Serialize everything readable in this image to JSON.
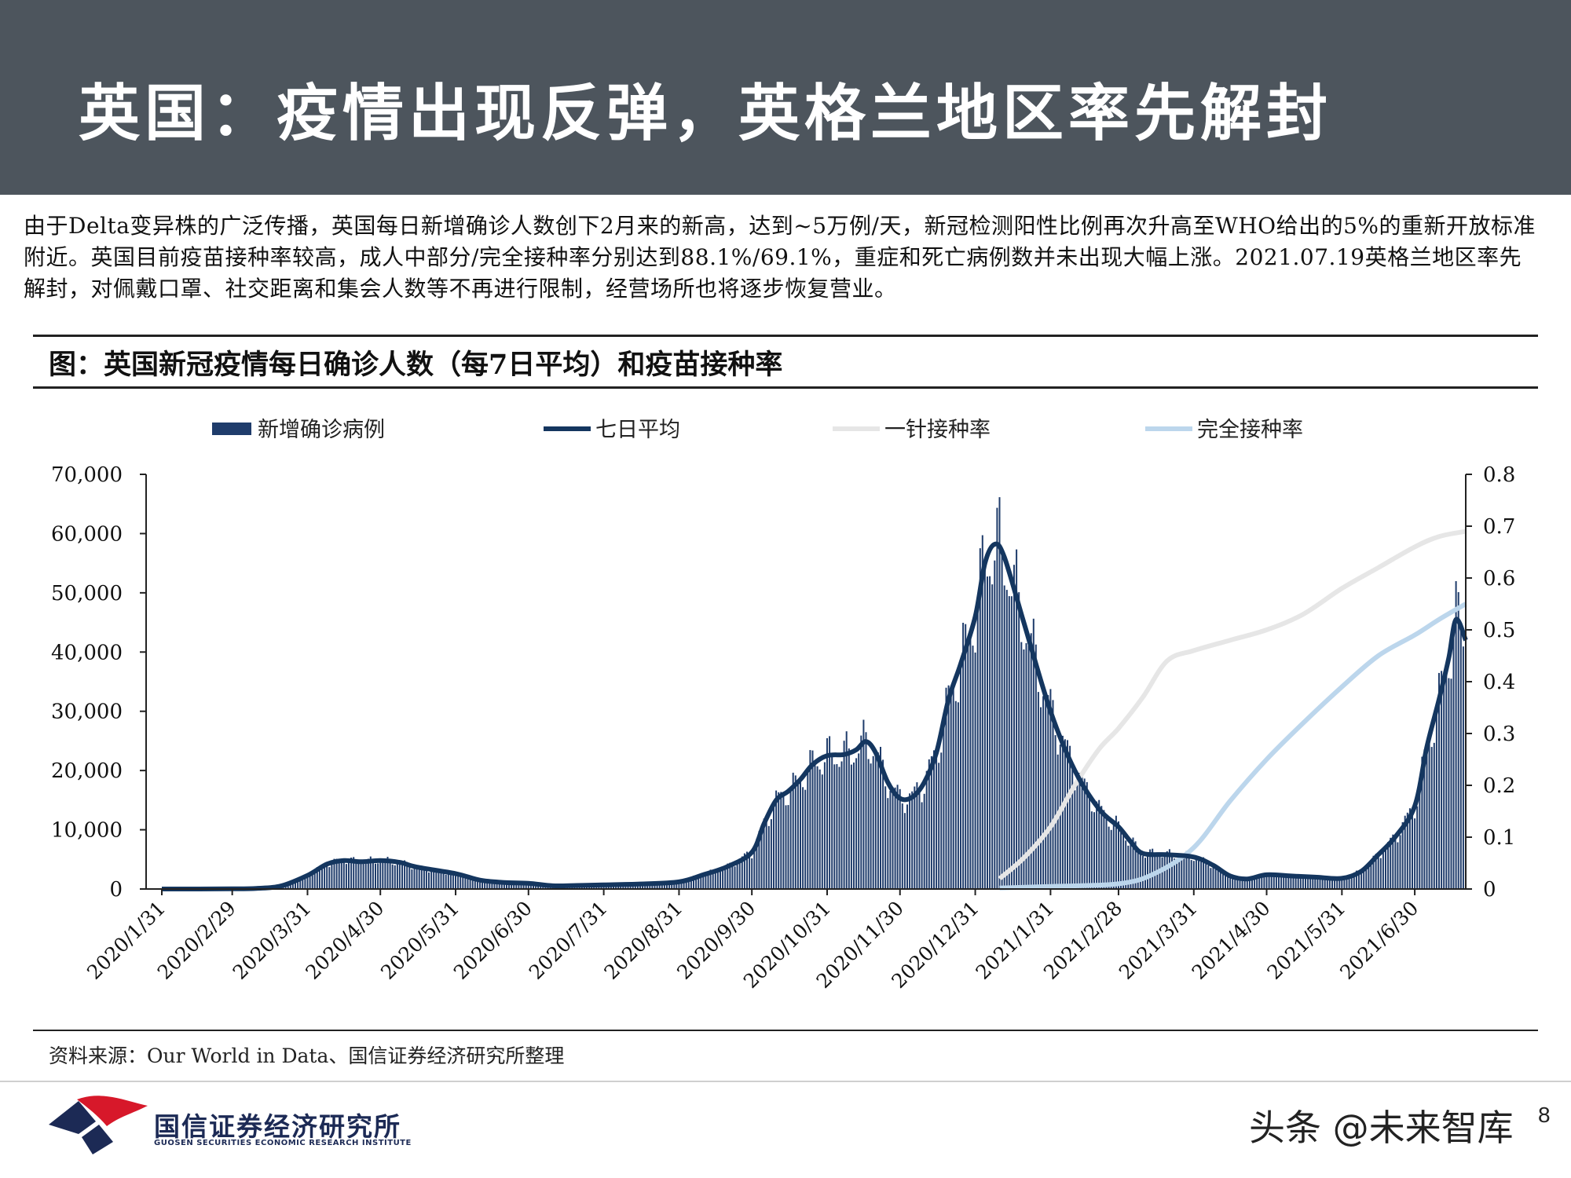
{
  "header": {
    "title": "英国：疫情出现反弹，英格兰地区率先解封"
  },
  "intro": {
    "text": "由于Delta变异株的广泛传播，英国每日新增确诊人数创下2月来的新高，达到~5万例/天，新冠检测阳性比例再次升高至WHO给出的5%的重新开放标准附近。英国目前疫苗接种率较高，成人中部分/完全接种率分别达到88.1%/69.1%，重症和死亡病例数并未出现大幅上涨。2021.07.19英格兰地区率先解封，对佩戴口罩、社交距离和集会人数等不再进行限制，经营场所也将逐步恢复营业。"
  },
  "figure": {
    "title": "图：英国新冠疫情每日确诊人数（每7日平均）和疫苗接种率"
  },
  "colors": {
    "header_bg": "#4d555d",
    "bars": "#1f3c6b",
    "avg_line": "#14365f",
    "first_dose": "#e6e6e6",
    "full_dose": "#bcd6ec"
  },
  "chart_data": {
    "type": "bar",
    "legend": [
      "新增确诊病例",
      "七日平均",
      "一针接种率",
      "完全接种率"
    ],
    "legend_placement": "top",
    "y_left": {
      "ticks": [
        "0",
        "10,000",
        "20,000",
        "30,000",
        "40,000",
        "50,000",
        "60,000",
        "70,000"
      ],
      "range": [
        0,
        70000
      ]
    },
    "y_right": {
      "ticks": [
        "0",
        "0.1",
        "0.2",
        "0.3",
        "0.4",
        "0.5",
        "0.6",
        "0.7",
        "0.8"
      ],
      "range": [
        0,
        0.8
      ]
    },
    "x_ticks": [
      "2020/1/31",
      "2020/2/29",
      "2020/3/31",
      "2020/4/30",
      "2020/5/31",
      "2020/6/30",
      "2020/7/31",
      "2020/8/31",
      "2020/9/30",
      "2020/10/31",
      "2020/11/30",
      "2020/12/31",
      "2021/1/31",
      "2021/2/28",
      "2021/3/31",
      "2021/4/30",
      "2021/5/31",
      "2021/6/30"
    ],
    "x_range": [
      "2020-01-31",
      "2021-07-21"
    ],
    "grid": false,
    "series": [
      {
        "name": "七日平均",
        "axis": "left",
        "points": [
          [
            "2020-01-31",
            0
          ],
          [
            "2020-02-29",
            20
          ],
          [
            "2020-03-10",
            100
          ],
          [
            "2020-03-20",
            500
          ],
          [
            "2020-03-31",
            2300
          ],
          [
            "2020-04-08",
            4200
          ],
          [
            "2020-04-15",
            4800
          ],
          [
            "2020-04-22",
            4600
          ],
          [
            "2020-04-30",
            4800
          ],
          [
            "2020-05-08",
            4500
          ],
          [
            "2020-05-15",
            3700
          ],
          [
            "2020-05-31",
            2600
          ],
          [
            "2020-06-10",
            1500
          ],
          [
            "2020-06-20",
            1100
          ],
          [
            "2020-06-30",
            950
          ],
          [
            "2020-07-10",
            550
          ],
          [
            "2020-07-20",
            600
          ],
          [
            "2020-07-31",
            700
          ],
          [
            "2020-08-15",
            850
          ],
          [
            "2020-08-31",
            1200
          ],
          [
            "2020-09-10",
            2400
          ],
          [
            "2020-09-20",
            3800
          ],
          [
            "2020-09-30",
            6200
          ],
          [
            "2020-10-05",
            11000
          ],
          [
            "2020-10-10",
            15000
          ],
          [
            "2020-10-15",
            16500
          ],
          [
            "2020-10-20",
            18500
          ],
          [
            "2020-10-25",
            21000
          ],
          [
            "2020-10-31",
            22500
          ],
          [
            "2020-11-07",
            22700
          ],
          [
            "2020-11-12",
            23500
          ],
          [
            "2020-11-16",
            24900
          ],
          [
            "2020-11-20",
            23000
          ],
          [
            "2020-11-25",
            18000
          ],
          [
            "2020-11-30",
            15300
          ],
          [
            "2020-12-05",
            15500
          ],
          [
            "2020-12-10",
            18000
          ],
          [
            "2020-12-15",
            23000
          ],
          [
            "2020-12-20",
            32000
          ],
          [
            "2020-12-25",
            38000
          ],
          [
            "2020-12-31",
            46000
          ],
          [
            "2021-01-04",
            55000
          ],
          [
            "2021-01-08",
            58200
          ],
          [
            "2021-01-12",
            56000
          ],
          [
            "2021-01-20",
            45000
          ],
          [
            "2021-01-31",
            30000
          ],
          [
            "2021-02-10",
            20000
          ],
          [
            "2021-02-20",
            13500
          ],
          [
            "2021-02-28",
            10500
          ],
          [
            "2021-03-05",
            8000
          ],
          [
            "2021-03-10",
            6000
          ],
          [
            "2021-03-20",
            5800
          ],
          [
            "2021-03-31",
            5400
          ],
          [
            "2021-04-08",
            4000
          ],
          [
            "2021-04-15",
            2200
          ],
          [
            "2021-04-22",
            1700
          ],
          [
            "2021-04-30",
            2400
          ],
          [
            "2021-05-10",
            2200
          ],
          [
            "2021-05-20",
            2000
          ],
          [
            "2021-05-31",
            1800
          ],
          [
            "2021-06-08",
            3000
          ],
          [
            "2021-06-15",
            5800
          ],
          [
            "2021-06-22",
            8800
          ],
          [
            "2021-06-30",
            14000
          ],
          [
            "2021-07-05",
            24000
          ],
          [
            "2021-07-10",
            32000
          ],
          [
            "2021-07-14",
            39000
          ],
          [
            "2021-07-17",
            45500
          ],
          [
            "2021-07-21",
            42000
          ]
        ]
      },
      {
        "name": "一针接种率",
        "axis": "right",
        "points": [
          [
            "2021-01-10",
            0.02
          ],
          [
            "2021-01-20",
            0.06
          ],
          [
            "2021-01-31",
            0.12
          ],
          [
            "2021-02-10",
            0.2
          ],
          [
            "2021-02-20",
            0.27
          ],
          [
            "2021-02-28",
            0.31
          ],
          [
            "2021-03-10",
            0.37
          ],
          [
            "2021-03-20",
            0.44
          ],
          [
            "2021-03-31",
            0.46
          ],
          [
            "2021-04-15",
            0.48
          ],
          [
            "2021-04-30",
            0.5
          ],
          [
            "2021-05-15",
            0.53
          ],
          [
            "2021-05-31",
            0.58
          ],
          [
            "2021-06-15",
            0.62
          ],
          [
            "2021-06-30",
            0.66
          ],
          [
            "2021-07-10",
            0.68
          ],
          [
            "2021-07-21",
            0.69
          ]
        ]
      },
      {
        "name": "完全接种率",
        "axis": "right",
        "points": [
          [
            "2021-01-10",
            0.002
          ],
          [
            "2021-01-31",
            0.005
          ],
          [
            "2021-02-28",
            0.01
          ],
          [
            "2021-03-15",
            0.03
          ],
          [
            "2021-03-31",
            0.08
          ],
          [
            "2021-04-15",
            0.17
          ],
          [
            "2021-04-30",
            0.25
          ],
          [
            "2021-05-15",
            0.32
          ],
          [
            "2021-05-31",
            0.39
          ],
          [
            "2021-06-15",
            0.45
          ],
          [
            "2021-06-30",
            0.49
          ],
          [
            "2021-07-10",
            0.52
          ],
          [
            "2021-07-21",
            0.55
          ]
        ]
      }
    ]
  },
  "source": "资料来源：Our World in Data、国信证券经济研究所整理",
  "footer": {
    "company_name": "国信证券经济研究所",
    "company_name_en": "GUOSEN SECURITIES ECONOMIC RESEARCH INSTITUTE",
    "watermark": "头条 @未来智库",
    "page_number": "8"
  }
}
